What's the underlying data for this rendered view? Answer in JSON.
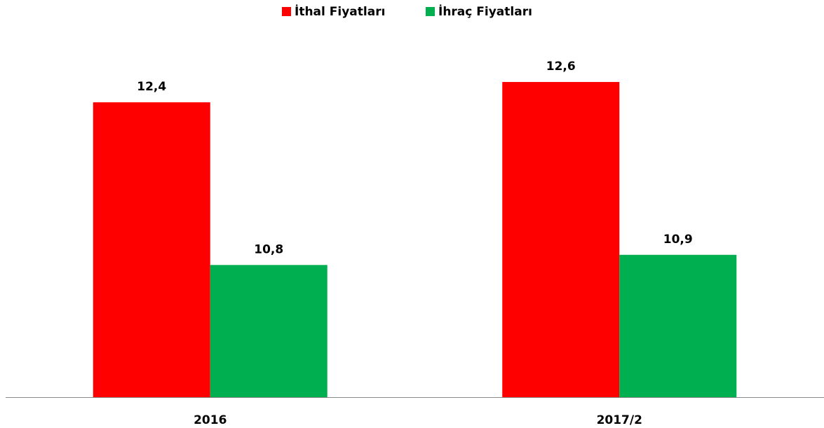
{
  "chart_data": {
    "type": "bar",
    "categories": [
      "2016",
      "2017/2"
    ],
    "series": [
      {
        "name": "İthal Fiyatları",
        "color": "#ff0000",
        "values": [
          12.4,
          12.6
        ],
        "value_labels": [
          "12,4",
          "12,6"
        ]
      },
      {
        "name": "İhraç Fiyatları",
        "color": "#00b050",
        "values": [
          10.8,
          10.9
        ],
        "value_labels": [
          "10,8",
          "10,9"
        ]
      }
    ],
    "ylim": [
      9.5,
      12.8
    ],
    "legend": "top"
  }
}
